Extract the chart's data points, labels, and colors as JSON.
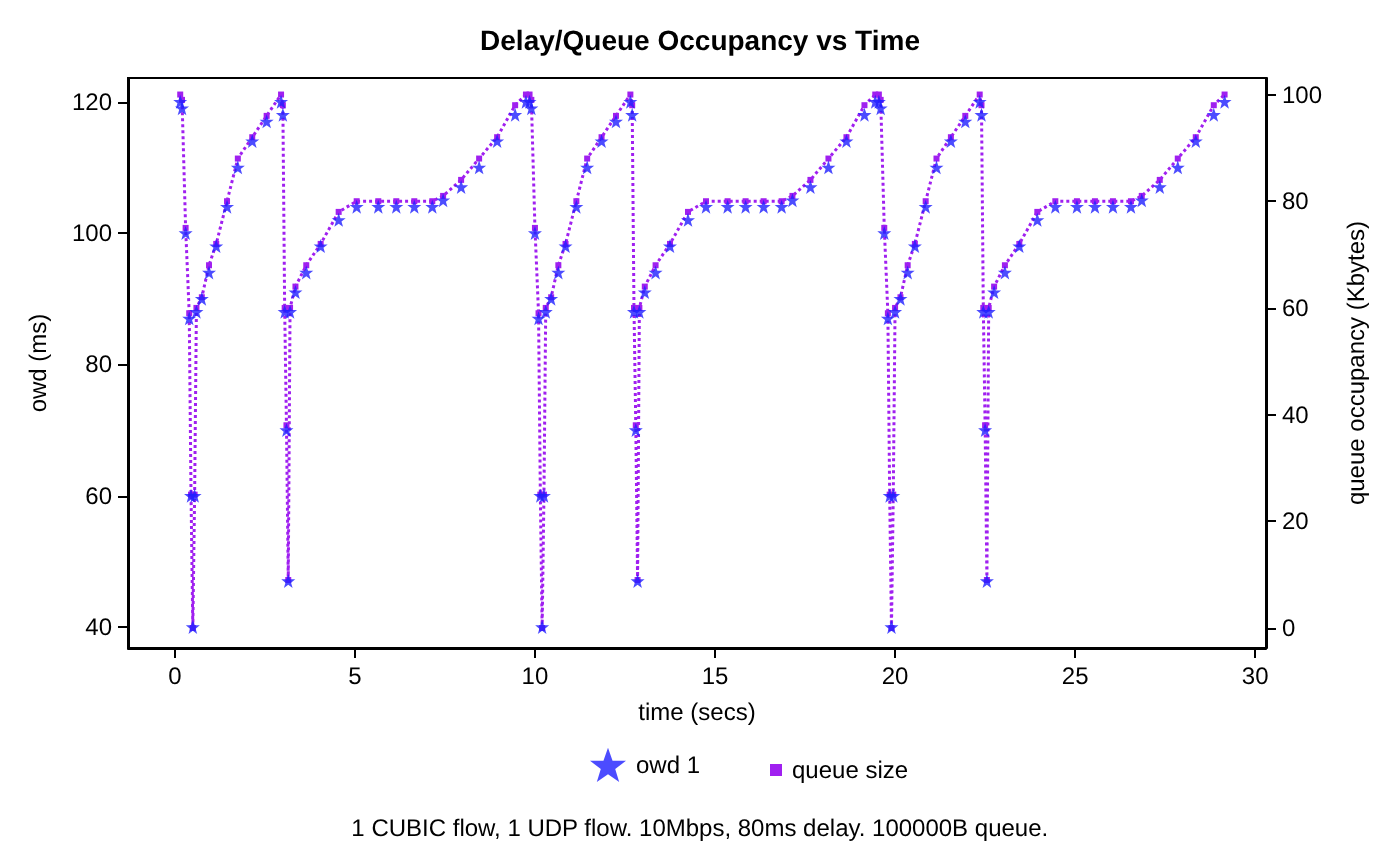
{
  "chart_data": {
    "type": "scatter",
    "title": "Delay/Queue Occupancy vs Time",
    "xlabel": "time (secs)",
    "ylabel": "owd (ms)",
    "y2label": "queue occupancy (Kbytes)",
    "annotations": [
      "1 CUBIC flow, 1 UDP flow. 10Mbps, 80ms delay. 100000B queue."
    ],
    "x": [
      0.15,
      0.2,
      0.3,
      0.4,
      0.45,
      0.5,
      0.55,
      0.6,
      0.75,
      0.95,
      1.15,
      1.45,
      1.75,
      2.15,
      2.55,
      2.95,
      3.0,
      3.05,
      3.1,
      3.15,
      3.2,
      3.35,
      3.65,
      4.05,
      4.55,
      5.05,
      5.65,
      6.15,
      6.65,
      7.15,
      7.45,
      7.95,
      8.45,
      8.95,
      9.45,
      9.75,
      9.85,
      9.9,
      10,
      10.1,
      10.15,
      10.2,
      10.25,
      10.3,
      10.45,
      10.65,
      10.85,
      11.15,
      11.45,
      11.85,
      12.25,
      12.65,
      12.7,
      12.75,
      12.8,
      12.85,
      12.9,
      13.05,
      13.35,
      13.75,
      14.25,
      14.75,
      15.35,
      15.85,
      16.35,
      16.85,
      17.15,
      17.65,
      18.15,
      18.65,
      19.15,
      19.45,
      19.55,
      19.6,
      19.7,
      19.8,
      19.85,
      19.9,
      19.95,
      20,
      20.15,
      20.35,
      20.55,
      20.85,
      21.15,
      21.55,
      21.95,
      22.35,
      22.4,
      22.45,
      22.5,
      22.55,
      22.6,
      22.75,
      23.05,
      23.45,
      23.95,
      24.45,
      25.05,
      25.55,
      26.05,
      26.55,
      26.85,
      27.35,
      27.85,
      28.35,
      28.85,
      29.15
    ],
    "series": [
      {
        "name": "owd 1",
        "color": "#1f1fff",
        "marker": "star",
        "values": [
          120,
          119,
          100,
          87,
          60,
          40,
          60,
          88,
          90,
          94,
          98,
          104,
          110,
          114,
          117,
          120,
          118,
          88,
          70,
          47,
          88,
          91,
          94,
          98,
          102,
          104,
          104,
          104,
          104,
          104,
          105,
          107,
          110,
          114,
          118,
          120,
          120,
          119,
          100,
          87,
          60,
          40,
          60,
          88,
          90,
          94,
          98,
          104,
          110,
          114,
          117,
          120,
          118,
          88,
          70,
          47,
          88,
          91,
          94,
          98,
          102,
          104,
          104,
          104,
          104,
          104,
          105,
          107,
          110,
          114,
          118,
          120,
          120,
          119,
          100,
          87,
          60,
          40,
          60,
          88,
          90,
          94,
          98,
          104,
          110,
          114,
          117,
          120,
          118,
          88,
          70,
          47,
          88,
          91,
          94,
          98,
          102,
          104,
          104,
          104,
          104,
          104,
          105,
          107,
          110,
          114,
          118,
          120
        ]
      },
      {
        "name": "queue size",
        "type": "line",
        "axis": "y2",
        "color": "#a020f0",
        "marker": "square",
        "line_style": "dotted",
        "values": [
          100,
          99,
          75,
          59,
          25,
          0,
          25,
          60,
          62,
          68,
          72,
          80,
          88,
          92,
          96,
          100,
          98,
          60,
          38,
          9,
          60,
          64,
          68,
          72,
          78,
          80,
          80,
          80,
          80,
          80,
          81,
          84,
          88,
          92,
          98,
          100,
          100,
          99,
          75,
          59,
          25,
          0,
          25,
          60,
          62,
          68,
          72,
          80,
          88,
          92,
          96,
          100,
          98,
          60,
          38,
          9,
          60,
          64,
          68,
          72,
          78,
          80,
          80,
          80,
          80,
          80,
          81,
          84,
          88,
          92,
          98,
          100,
          100,
          99,
          75,
          59,
          25,
          0,
          25,
          60,
          62,
          68,
          72,
          80,
          88,
          92,
          96,
          100,
          98,
          60,
          38,
          9,
          60,
          64,
          68,
          72,
          78,
          80,
          80,
          80,
          80,
          80,
          81,
          84,
          88,
          92,
          98,
          100
        ]
      }
    ],
    "xlim": [
      -1.3,
      30.3
    ],
    "xticks": [
      0,
      5,
      10,
      15,
      20,
      25,
      30
    ],
    "ylim": [
      36.8,
      123.6
    ],
    "yticks": [
      40,
      60,
      80,
      100,
      120
    ],
    "y2lim": [
      -3.75,
      103.1
    ],
    "y2ticks": [
      0,
      20,
      40,
      60,
      80,
      100
    ],
    "grid": false,
    "legend": "bottom"
  }
}
